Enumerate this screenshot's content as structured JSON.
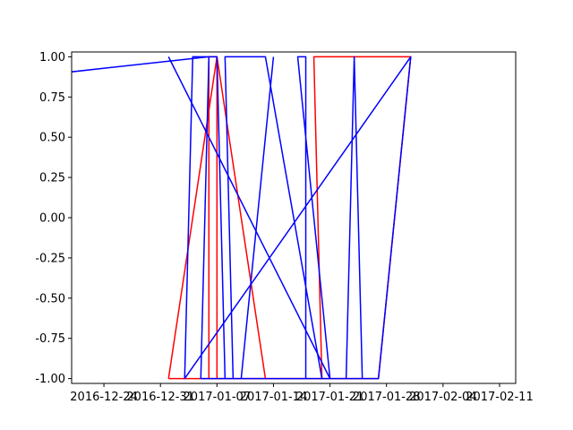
{
  "chart_data": {
    "type": "line",
    "title": "",
    "xlabel": "",
    "ylabel": "",
    "x_axis": {
      "type": "date",
      "range": [
        "2016-12-20",
        "2017-02-13"
      ],
      "ticks": [
        "2016-12-24",
        "2016-12-31",
        "2017-01-07",
        "2017-01-14",
        "2017-01-21",
        "2017-01-28",
        "2017-02-04",
        "2017-02-11"
      ]
    },
    "y_axis": {
      "range": [
        -1.03,
        1.03
      ],
      "ticks": [
        "-1.00",
        "-0.75",
        "-0.50",
        "-0.25",
        "0.00",
        "0.25",
        "0.50",
        "0.75",
        "1.00"
      ],
      "tick_values": [
        -1.0,
        -0.75,
        -0.5,
        -0.25,
        0.0,
        0.25,
        0.5,
        0.75,
        1.0
      ]
    },
    "grid": false,
    "legend": "none",
    "series": [
      {
        "color": "#ff0000",
        "points": [
          {
            "x": "2017-01-01",
            "y": -1.0
          },
          {
            "x": "2017-01-07",
            "y": -1.0
          },
          {
            "x": "2017-01-07",
            "y": 1.0
          },
          {
            "x": "2017-01-13",
            "y": -1.0
          },
          {
            "x": "2017-01-20",
            "y": -1.0
          },
          {
            "x": "2017-01-19",
            "y": 1.0
          },
          {
            "x": "2017-01-31",
            "y": 1.0
          },
          {
            "x": "2017-01-27",
            "y": -1.0
          },
          {
            "x": "2017-01-06",
            "y": -1.0
          },
          {
            "x": "2017-01-06",
            "y": 1.0
          },
          {
            "x": "2017-01-07",
            "y": 1.0
          },
          {
            "x": "2017-01-01",
            "y": -1.0
          }
        ]
      },
      {
        "color": "#0000ff",
        "points": [
          {
            "x": "2016-12-17",
            "y": 0.89
          },
          {
            "x": "2017-01-06",
            "y": 1.0
          },
          {
            "x": "2017-01-07",
            "y": 1.0
          },
          {
            "x": "2017-01-08",
            "y": -1.0
          },
          {
            "x": "2017-01-09",
            "y": -1.0
          },
          {
            "x": "2017-01-08",
            "y": 1.0
          },
          {
            "x": "2017-01-13",
            "y": 1.0
          },
          {
            "x": "2017-01-20",
            "y": -1.0
          },
          {
            "x": "2017-01-21",
            "y": -1.0
          },
          {
            "x": "2017-01-17",
            "y": 1.0
          },
          {
            "x": "2017-01-18",
            "y": 1.0
          },
          {
            "x": "2017-01-18",
            "y": -1.0
          },
          {
            "x": "2017-01-23",
            "y": -1.0
          },
          {
            "x": "2017-01-24",
            "y": 1.0
          },
          {
            "x": "2017-01-25",
            "y": -1.0
          },
          {
            "x": "2017-01-27",
            "y": -1.0
          },
          {
            "x": "2017-01-31",
            "y": 1.0
          },
          {
            "x": "2017-01-27",
            "y": -1.0
          },
          {
            "x": "2017-01-05",
            "y": -1.0
          },
          {
            "x": "2017-01-06",
            "y": 1.0
          },
          {
            "x": "2017-01-04",
            "y": 1.0
          },
          {
            "x": "2017-01-03",
            "y": -1.0
          },
          {
            "x": "2017-01-31",
            "y": 1.0
          }
        ]
      },
      {
        "color": "#0000ff",
        "points": [
          {
            "x": "2017-01-01",
            "y": 1.0
          },
          {
            "x": "2017-01-21",
            "y": -1.0
          }
        ]
      },
      {
        "color": "#0000ff",
        "points": [
          {
            "x": "2017-01-14",
            "y": 1.0
          },
          {
            "x": "2017-01-10",
            "y": -1.0
          }
        ]
      }
    ]
  }
}
